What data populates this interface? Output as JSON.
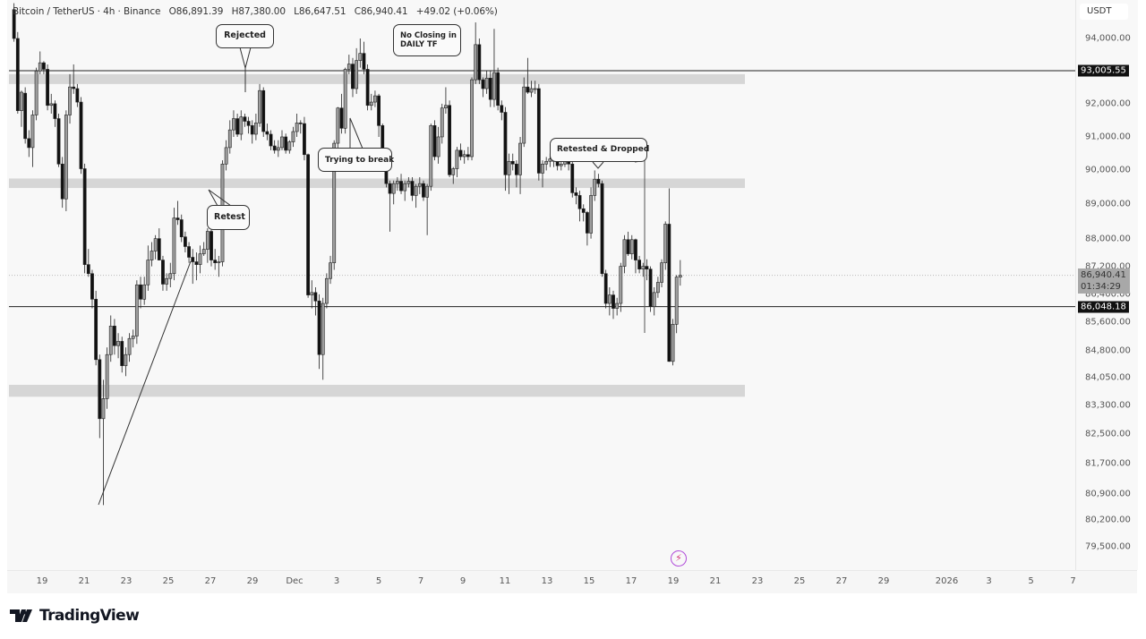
{
  "header": {
    "symbol": "Bitcoin / TetherUS · 4h · Binance",
    "open": "O86,891.39",
    "high": "H87,380.00",
    "low": "L86,647.51",
    "close": "C86,940.41",
    "change": "+49.02 (+0.06%)"
  },
  "price_axis": {
    "currency": "USDT",
    "ticks": [
      "94,000.00",
      "92,000.00",
      "91,000.00",
      "90,000.00",
      "89,000.00",
      "88,000.00",
      "87,200.00",
      "86,400.00",
      "85,600.00",
      "84,800.00",
      "84,050.00",
      "83,300.00",
      "82,500.00",
      "81,700.00",
      "80,900.00",
      "80,200.00",
      "79,500.00"
    ],
    "badges": {
      "resistance": "93,005.55",
      "last_price": "86,940.41",
      "countdown": "01:34:29",
      "support": "86,048.18"
    }
  },
  "time_axis": {
    "ticks": [
      {
        "label": "19",
        "date": "2025-11-19"
      },
      {
        "label": "21",
        "date": "2025-11-21"
      },
      {
        "label": "23",
        "date": "2025-11-23"
      },
      {
        "label": "25",
        "date": "2025-11-25"
      },
      {
        "label": "27",
        "date": "2025-11-27"
      },
      {
        "label": "29",
        "date": "2025-11-29"
      },
      {
        "label": "Dec",
        "date": "2025-12-01"
      },
      {
        "label": "3",
        "date": "2025-12-03"
      },
      {
        "label": "5",
        "date": "2025-12-05"
      },
      {
        "label": "7",
        "date": "2025-12-07"
      },
      {
        "label": "9",
        "date": "2025-12-09"
      },
      {
        "label": "11",
        "date": "2025-12-11"
      },
      {
        "label": "13",
        "date": "2025-12-13"
      },
      {
        "label": "15",
        "date": "2025-12-15"
      },
      {
        "label": "17",
        "date": "2025-12-17"
      },
      {
        "label": "19",
        "date": "2025-12-19"
      },
      {
        "label": "21",
        "date": "2025-12-21"
      },
      {
        "label": "23",
        "date": "2025-12-23"
      },
      {
        "label": "25",
        "date": "2025-12-25"
      },
      {
        "label": "27",
        "date": "2025-12-27"
      },
      {
        "label": "29",
        "date": "2025-12-29"
      },
      {
        "label": "2026",
        "date": "2026-01-01"
      },
      {
        "label": "3",
        "date": "2026-01-03"
      },
      {
        "label": "5",
        "date": "2026-01-05"
      },
      {
        "label": "7",
        "date": "2026-01-07"
      }
    ]
  },
  "annotations": {
    "rejected": "Rejected",
    "no_closing_1": "No Closing in",
    "no_closing_2": "DAILY TF",
    "trying": "Trying to break",
    "retest": "Retest",
    "retested_dropped": "Retested & Dropped"
  },
  "branding": {
    "logo": "TradingView"
  },
  "icons": {
    "alert": "lightning-icon"
  },
  "colors": {
    "up": "#9e9e9e",
    "down": "#111111",
    "zone": "#d6d6d6",
    "line": "#222222"
  },
  "chart_data": {
    "type": "candlestick",
    "interval": "4h",
    "y_scale": "log",
    "ylim": [
      79000,
      95200
    ],
    "xlim": [
      "2025-11-17",
      "2026-01-07"
    ],
    "grid": false,
    "first_candle": "2025-11-17 16:00",
    "last_candle": "2025-12-19 08:00",
    "zones": [
      [
        92600,
        92900
      ],
      [
        89480,
        89760
      ],
      [
        83530,
        83860
      ]
    ],
    "horizontal_lines": [
      93005.55,
      86048.18
    ],
    "candles": [
      [
        94900,
        95100,
        93900,
        94000
      ],
      [
        94000,
        94200,
        91700,
        91790
      ],
      [
        91790,
        92400,
        91300,
        92350
      ],
      [
        92320,
        92500,
        90800,
        90950
      ],
      [
        90950,
        91200,
        90400,
        90680
      ],
      [
        90680,
        91800,
        90100,
        91660
      ],
      [
        91660,
        93100,
        91500,
        93000
      ],
      [
        93000,
        93600,
        92900,
        93250
      ],
      [
        93250,
        93300,
        92900,
        93050
      ],
      [
        93050,
        93200,
        91800,
        91950
      ],
      [
        91950,
        92300,
        91700,
        92000
      ],
      [
        92000,
        92100,
        91300,
        91550
      ],
      [
        91550,
        91700,
        90100,
        90190
      ],
      [
        90190,
        90400,
        88900,
        89160
      ],
      [
        89160,
        91800,
        88800,
        91660
      ],
      [
        91660,
        92900,
        91400,
        92510
      ],
      [
        92510,
        93200,
        92300,
        92460
      ],
      [
        92460,
        92600,
        91900,
        92050
      ],
      [
        92050,
        92200,
        89900,
        90050
      ],
      [
        90050,
        90200,
        87000,
        87250
      ],
      [
        87250,
        87700,
        86900,
        86990
      ],
      [
        86990,
        87100,
        86000,
        86260
      ],
      [
        86260,
        86500,
        84400,
        84560
      ],
      [
        84560,
        84700,
        82400,
        82930
      ],
      [
        82930,
        84000,
        80600,
        83480
      ],
      [
        83480,
        84900,
        83200,
        84700
      ],
      [
        84700,
        85800,
        84500,
        85500
      ],
      [
        85500,
        85700,
        84700,
        84950
      ],
      [
        84950,
        85300,
        84600,
        85070
      ],
      [
        85070,
        85200,
        84200,
        84390
      ],
      [
        84390,
        84900,
        84100,
        84700
      ],
      [
        84700,
        85300,
        84500,
        85150
      ],
      [
        85150,
        85400,
        84900,
        85220
      ],
      [
        85220,
        86800,
        85000,
        86670
      ],
      [
        86670,
        86900,
        86000,
        86260
      ],
      [
        86260,
        86900,
        86100,
        86670
      ],
      [
        86670,
        87800,
        86500,
        87380
      ],
      [
        87380,
        87900,
        87200,
        87640
      ],
      [
        87640,
        88100,
        87400,
        88000
      ],
      [
        88000,
        88300,
        87400,
        87380
      ],
      [
        87380,
        87500,
        86500,
        86690
      ],
      [
        86690,
        87000,
        86500,
        86850
      ],
      [
        86850,
        87300,
        86600,
        86990
      ],
      [
        86990,
        88900,
        86800,
        88600
      ],
      [
        88600,
        89100,
        88400,
        88550
      ],
      [
        88550,
        88700,
        87900,
        88050
      ],
      [
        88050,
        88200,
        87600,
        87770
      ],
      [
        87770,
        87900,
        87300,
        87460
      ],
      [
        87460,
        87700,
        86700,
        87330
      ],
      [
        87330,
        87600,
        86800,
        87250
      ],
      [
        87250,
        87800,
        87000,
        87560
      ],
      [
        87560,
        87900,
        87500,
        87690
      ],
      [
        87690,
        88300,
        87300,
        88210
      ],
      [
        88210,
        88400,
        87200,
        87380
      ],
      [
        87380,
        87700,
        87100,
        87300
      ],
      [
        87300,
        87500,
        86900,
        87330
      ],
      [
        87330,
        90300,
        87200,
        90190
      ],
      [
        90190,
        90900,
        90000,
        90680
      ],
      [
        90680,
        91500,
        90500,
        91210
      ],
      [
        91210,
        91800,
        91000,
        91550
      ],
      [
        91550,
        91700,
        91000,
        91080
      ],
      [
        91080,
        91800,
        90900,
        91600
      ],
      [
        91600,
        91700,
        91300,
        91470
      ],
      [
        91470,
        91600,
        91100,
        91340
      ],
      [
        91340,
        91500,
        90800,
        91080
      ],
      [
        91080,
        91700,
        90900,
        91420
      ],
      [
        91420,
        92600,
        91300,
        92400
      ],
      [
        92400,
        92500,
        91000,
        91160
      ],
      [
        91160,
        91400,
        90900,
        91080
      ],
      [
        91080,
        91200,
        90600,
        90730
      ],
      [
        90730,
        90900,
        90500,
        90600
      ],
      [
        90600,
        90900,
        90400,
        90680
      ],
      [
        90680,
        91200,
        90600,
        91000
      ],
      [
        91000,
        91100,
        90500,
        90600
      ],
      [
        90600,
        90900,
        90500,
        90850
      ],
      [
        90850,
        91300,
        90700,
        91160
      ],
      [
        91160,
        91700,
        91000,
        91420
      ],
      [
        91420,
        91500,
        91100,
        91400
      ],
      [
        91400,
        91600,
        90300,
        90470
      ],
      [
        90470,
        90500,
        86300,
        86380
      ],
      [
        86380,
        86800,
        86000,
        86450
      ],
      [
        86450,
        86600,
        85800,
        86210
      ],
      [
        86210,
        86400,
        84300,
        84700
      ],
      [
        84700,
        86300,
        84000,
        86140
      ],
      [
        86140,
        87000,
        86000,
        86850
      ],
      [
        86850,
        87500,
        86700,
        87300
      ],
      [
        87300,
        90900,
        87100,
        90810
      ],
      [
        90810,
        91900,
        90600,
        91870
      ],
      [
        91870,
        92300,
        91100,
        91260
      ],
      [
        91260,
        93100,
        91100,
        93050
      ],
      [
        93050,
        93500,
        92900,
        93210
      ],
      [
        93210,
        93400,
        92200,
        92460
      ],
      [
        92460,
        93700,
        92300,
        93320
      ],
      [
        93320,
        94000,
        93100,
        93540
      ],
      [
        93540,
        93900,
        92900,
        93050
      ],
      [
        93050,
        93200,
        91800,
        91950
      ],
      [
        91950,
        92300,
        91800,
        92050
      ],
      [
        92050,
        92400,
        91900,
        92240
      ],
      [
        92240,
        92300,
        91000,
        91340
      ],
      [
        91340,
        91400,
        90300,
        90410
      ],
      [
        90410,
        90500,
        89500,
        89610
      ],
      [
        89610,
        89700,
        88200,
        89320
      ],
      [
        89320,
        89700,
        89000,
        89610
      ],
      [
        89610,
        89800,
        89400,
        89680
      ],
      [
        89680,
        89900,
        89300,
        89400
      ],
      [
        89400,
        89700,
        89100,
        89610
      ],
      [
        89610,
        89800,
        89500,
        89680
      ],
      [
        89680,
        89800,
        89100,
        89260
      ],
      [
        89260,
        89600,
        88900,
        89530
      ],
      [
        89530,
        89800,
        89300,
        89610
      ],
      [
        89610,
        89700,
        89100,
        89210
      ],
      [
        89210,
        89600,
        88100,
        89530
      ],
      [
        89530,
        91400,
        89400,
        91340
      ],
      [
        91340,
        91500,
        90300,
        90410
      ],
      [
        90410,
        91300,
        90200,
        91000
      ],
      [
        91000,
        92000,
        90800,
        91870
      ],
      [
        91870,
        92500,
        91700,
        91950
      ],
      [
        91950,
        92100,
        89800,
        89870
      ],
      [
        89870,
        90100,
        89600,
        90050
      ],
      [
        90050,
        90700,
        89800,
        90600
      ],
      [
        90600,
        90800,
        90300,
        90410
      ],
      [
        90410,
        90600,
        90200,
        90470
      ],
      [
        90470,
        90700,
        90300,
        90410
      ],
      [
        90410,
        92800,
        90300,
        92730
      ],
      [
        92730,
        94500,
        92600,
        93810
      ],
      [
        93810,
        94000,
        92600,
        92730
      ],
      [
        92730,
        92800,
        92200,
        92460
      ],
      [
        92460,
        93000,
        92300,
        92780
      ],
      [
        92780,
        93000,
        91900,
        92130
      ],
      [
        92130,
        94300,
        91900,
        92950
      ],
      [
        92950,
        93100,
        91800,
        91950
      ],
      [
        91950,
        92100,
        91500,
        91740
      ],
      [
        91740,
        91900,
        89400,
        89870
      ],
      [
        89870,
        90500,
        89300,
        90270
      ],
      [
        90270,
        90500,
        90000,
        90190
      ],
      [
        90190,
        90300,
        89500,
        89870
      ],
      [
        89870,
        91000,
        89300,
        90810
      ],
      [
        90810,
        92800,
        90700,
        92510
      ],
      [
        92510,
        93400,
        92300,
        92350
      ],
      [
        92350,
        92700,
        92200,
        92460
      ],
      [
        92460,
        92700,
        92300,
        92460
      ],
      [
        92460,
        92600,
        89700,
        89920
      ],
      [
        89920,
        90300,
        89500,
        90190
      ],
      [
        90190,
        90400,
        90000,
        90270
      ],
      [
        90270,
        90500,
        90100,
        90340
      ],
      [
        90340,
        90400,
        90100,
        90270
      ],
      [
        90270,
        90400,
        90000,
        90140
      ],
      [
        90140,
        90350,
        90000,
        90190
      ],
      [
        90190,
        90400,
        90100,
        90270
      ],
      [
        90270,
        90400,
        90000,
        90190
      ],
      [
        90190,
        90300,
        89200,
        89340
      ],
      [
        89340,
        89500,
        89000,
        89260
      ],
      [
        89260,
        89400,
        88500,
        88870
      ],
      [
        88870,
        89000,
        88500,
        88760
      ],
      [
        88760,
        88800,
        87800,
        88160
      ],
      [
        88160,
        89500,
        88000,
        89260
      ],
      [
        89260,
        90000,
        89100,
        89740
      ],
      [
        89740,
        89900,
        89500,
        89610
      ],
      [
        89610,
        89700,
        86900,
        86990
      ],
      [
        86990,
        87100,
        86000,
        86140
      ],
      [
        86140,
        86600,
        85800,
        86380
      ],
      [
        86380,
        86500,
        85700,
        86000
      ],
      [
        86000,
        86300,
        85800,
        86140
      ],
      [
        86140,
        87300,
        85900,
        87200
      ],
      [
        87200,
        88100,
        87000,
        87970
      ],
      [
        87970,
        88200,
        87500,
        87560
      ],
      [
        87560,
        88100,
        87400,
        87970
      ],
      [
        87970,
        88000,
        87000,
        87380
      ],
      [
        87380,
        87500,
        87000,
        87120
      ],
      [
        87120,
        87300,
        86900,
        87200
      ],
      [
        87200,
        87400,
        86800,
        87120
      ],
      [
        87120,
        87200,
        85900,
        86050
      ],
      [
        86050,
        86600,
        85800,
        86450
      ],
      [
        86450,
        86900,
        86300,
        86740
      ],
      [
        86740,
        87400,
        86600,
        87300
      ],
      [
        87300,
        88500,
        87100,
        88420
      ],
      [
        88420,
        89470,
        84500,
        84510
      ],
      [
        84510,
        85700,
        84400,
        85550
      ],
      [
        85550,
        86950,
        85300,
        86891.39
      ],
      [
        86891.39,
        87380,
        86647.51,
        86940.41
      ]
    ]
  }
}
